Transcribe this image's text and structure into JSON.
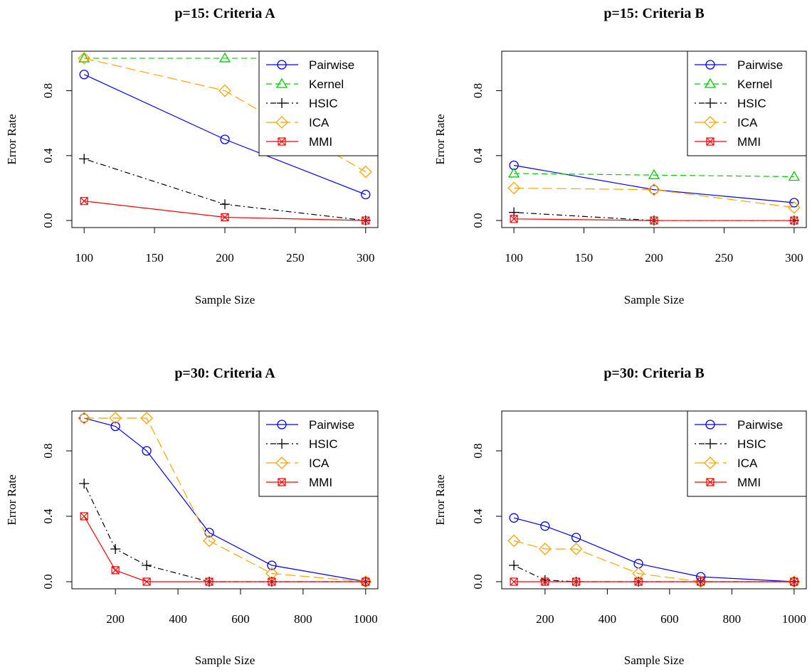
{
  "chart_data": [
    {
      "type": "line",
      "title": "p=15: Criteria A",
      "xlabel": "Sample Size",
      "ylabel": "Error Rate",
      "x": [
        100,
        200,
        300
      ],
      "xlim": [
        100,
        300
      ],
      "xticks": [
        100,
        150,
        200,
        250,
        300
      ],
      "ylim": [
        0,
        1
      ],
      "yticks": [
        0.0,
        0.4,
        0.8
      ],
      "ytick_labels": [
        "0.0",
        "0.4",
        "0.8"
      ],
      "legend": "top-right",
      "series": [
        {
          "name": "Pairwise",
          "values": [
            0.9,
            0.5,
            0.16
          ],
          "color": "#0000ff",
          "dash": "solid",
          "marker": "circle"
        },
        {
          "name": "Kernel",
          "values": [
            1.0,
            1.0,
            1.0
          ],
          "color": "#00cc00",
          "dash": "dashed",
          "marker": "triangle"
        },
        {
          "name": "HSIC",
          "values": [
            0.38,
            0.1,
            0.0
          ],
          "color": "#000000",
          "dash": "dotdash",
          "marker": "plus"
        },
        {
          "name": "ICA",
          "values": [
            1.0,
            0.8,
            0.3
          ],
          "color": "#ffa500",
          "dash": "longdash",
          "marker": "diamond"
        },
        {
          "name": "MMI",
          "values": [
            0.12,
            0.02,
            0.0
          ],
          "color": "#ff0000",
          "dash": "solid",
          "marker": "boxx"
        }
      ]
    },
    {
      "type": "line",
      "title": "p=15: Criteria B",
      "xlabel": "Sample Size",
      "ylabel": "Error Rate",
      "x": [
        100,
        200,
        300
      ],
      "xlim": [
        100,
        300
      ],
      "xticks": [
        100,
        150,
        200,
        250,
        300
      ],
      "ylim": [
        0,
        1
      ],
      "yticks": [
        0.0,
        0.4,
        0.8
      ],
      "ytick_labels": [
        "0.0",
        "0.4",
        "0.8"
      ],
      "legend": "top-right",
      "series": [
        {
          "name": "Pairwise",
          "values": [
            0.34,
            0.19,
            0.11
          ],
          "color": "#0000ff",
          "dash": "solid",
          "marker": "circle"
        },
        {
          "name": "Kernel",
          "values": [
            0.29,
            0.28,
            0.27
          ],
          "color": "#00cc00",
          "dash": "dashed",
          "marker": "triangle"
        },
        {
          "name": "HSIC",
          "values": [
            0.05,
            0.0,
            0.0
          ],
          "color": "#000000",
          "dash": "dotdash",
          "marker": "plus"
        },
        {
          "name": "ICA",
          "values": [
            0.2,
            0.19,
            0.08
          ],
          "color": "#ffa500",
          "dash": "longdash",
          "marker": "diamond"
        },
        {
          "name": "MMI",
          "values": [
            0.01,
            0.0,
            0.0
          ],
          "color": "#ff0000",
          "dash": "solid",
          "marker": "boxx"
        }
      ]
    },
    {
      "type": "line",
      "title": "p=30: Criteria A",
      "xlabel": "Sample Size",
      "ylabel": "Error Rate",
      "x": [
        100,
        200,
        300,
        500,
        700,
        1000
      ],
      "xlim": [
        100,
        1000
      ],
      "xticks": [
        200,
        400,
        600,
        800,
        1000
      ],
      "ylim": [
        0,
        1
      ],
      "yticks": [
        0.0,
        0.4,
        0.8
      ],
      "ytick_labels": [
        "0.0",
        "0.4",
        "0.8"
      ],
      "legend": "top-right",
      "series": [
        {
          "name": "Pairwise",
          "values": [
            1.0,
            0.95,
            0.8,
            0.3,
            0.1,
            0.0
          ],
          "color": "#0000ff",
          "dash": "solid",
          "marker": "circle"
        },
        {
          "name": "HSIC",
          "values": [
            0.6,
            0.2,
            0.1,
            0.0,
            0.0,
            0.0
          ],
          "color": "#000000",
          "dash": "dotdash",
          "marker": "plus"
        },
        {
          "name": "ICA",
          "values": [
            1.0,
            1.0,
            1.0,
            0.25,
            0.05,
            0.0
          ],
          "color": "#ffa500",
          "dash": "longdash",
          "marker": "diamond"
        },
        {
          "name": "MMI",
          "values": [
            0.4,
            0.07,
            0.0,
            0.0,
            0.0,
            0.0
          ],
          "color": "#ff0000",
          "dash": "solid",
          "marker": "boxx"
        }
      ]
    },
    {
      "type": "line",
      "title": "p=30: Criteria B",
      "xlabel": "Sample Size",
      "ylabel": "Error Rate",
      "x": [
        100,
        200,
        300,
        500,
        700,
        1000
      ],
      "xlim": [
        100,
        1000
      ],
      "xticks": [
        200,
        400,
        600,
        800,
        1000
      ],
      "ylim": [
        0,
        1
      ],
      "yticks": [
        0.0,
        0.4,
        0.8
      ],
      "ytick_labels": [
        "0.0",
        "0.4",
        "0.8"
      ],
      "legend": "top-right",
      "series": [
        {
          "name": "Pairwise",
          "values": [
            0.39,
            0.34,
            0.27,
            0.11,
            0.03,
            0.0
          ],
          "color": "#0000ff",
          "dash": "solid",
          "marker": "circle"
        },
        {
          "name": "HSIC",
          "values": [
            0.1,
            0.01,
            0.0,
            0.0,
            0.0,
            0.0
          ],
          "color": "#000000",
          "dash": "dotdash",
          "marker": "plus"
        },
        {
          "name": "ICA",
          "values": [
            0.25,
            0.2,
            0.2,
            0.05,
            0.0,
            0.0
          ],
          "color": "#ffa500",
          "dash": "longdash",
          "marker": "diamond"
        },
        {
          "name": "MMI",
          "values": [
            0.0,
            0.0,
            0.0,
            0.0,
            0.0,
            0.0
          ],
          "color": "#ff0000",
          "dash": "solid",
          "marker": "boxx"
        }
      ]
    }
  ]
}
